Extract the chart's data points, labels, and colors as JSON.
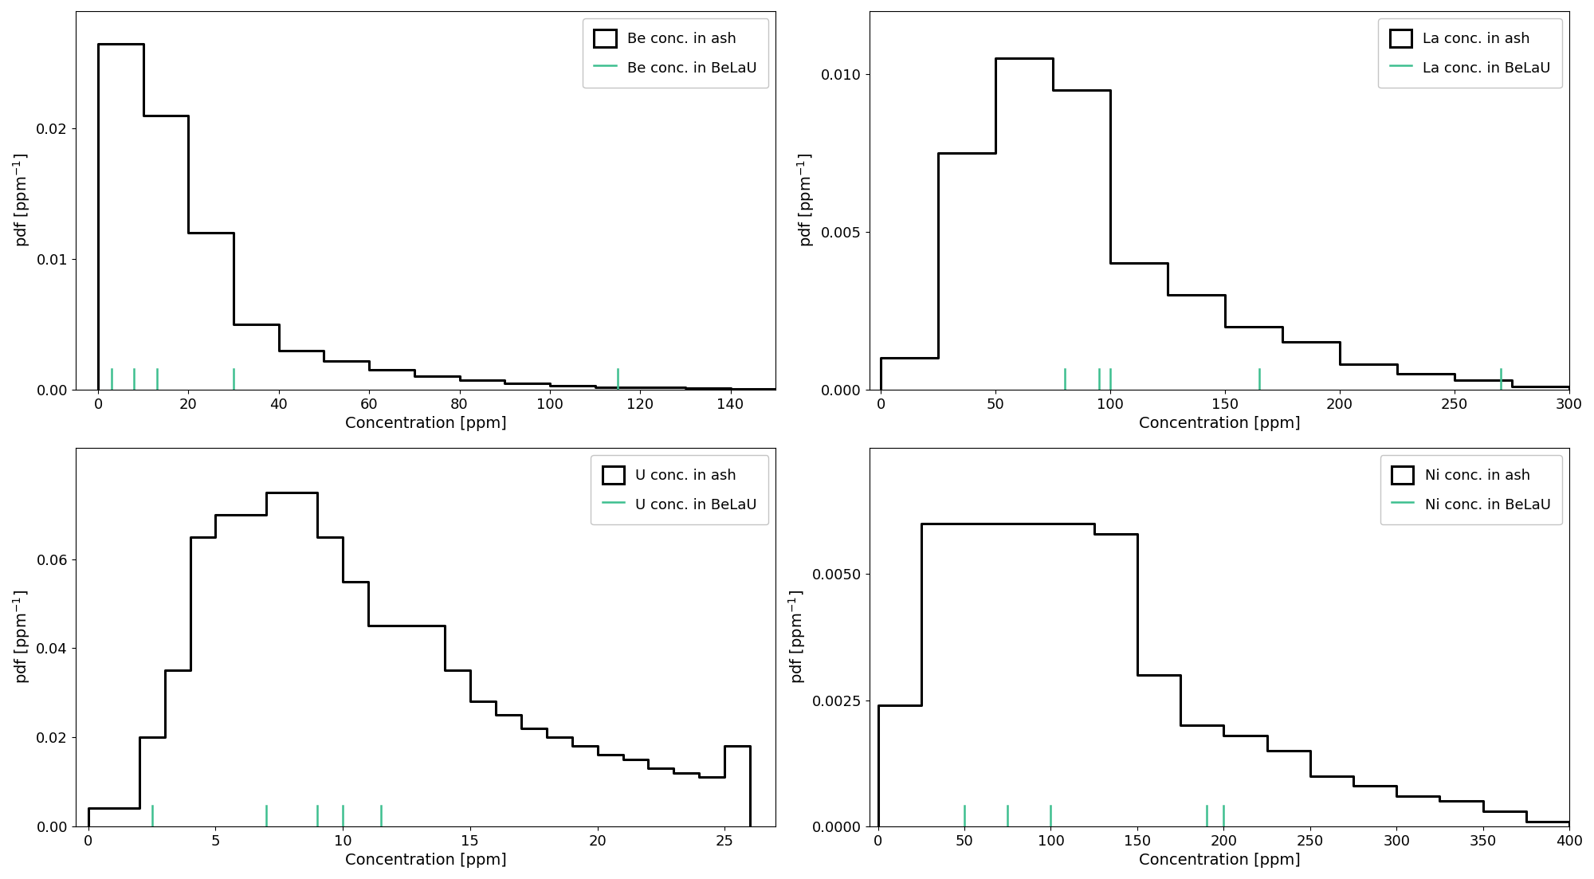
{
  "panels": [
    {
      "element": "Be",
      "ash_label": "Be conc. in ash",
      "belau_label": "Be conc. in BeLaU",
      "xlim": [
        -5,
        150
      ],
      "ylabel": "pdf [ppm$^{-1}$]",
      "xlabel": "Concentration [ppm]",
      "hist_bins": [
        0,
        10,
        20,
        30,
        40,
        50,
        60,
        70,
        80,
        90,
        100,
        110,
        120,
        130,
        140,
        150
      ],
      "hist_density": [
        0.0265,
        0.021,
        0.012,
        0.005,
        0.003,
        0.0022,
        0.0015,
        0.001,
        0.00075,
        0.0005,
        0.0003,
        0.0002,
        0.00015,
        0.0001,
        5e-05
      ],
      "belau_x": [
        3,
        8,
        13,
        30,
        115
      ],
      "yticks": [
        0.0,
        0.01,
        0.02
      ],
      "ymax": 0.029
    },
    {
      "element": "La",
      "ash_label": "La conc. in ash",
      "belau_label": "La conc. in BeLaU",
      "xlim": [
        -5,
        300
      ],
      "ylabel": "pdf [ppm$^{-1}$]",
      "xlabel": "Concentration [ppm]",
      "hist_bins": [
        0,
        25,
        50,
        75,
        100,
        125,
        150,
        175,
        200,
        225,
        250,
        275,
        300
      ],
      "hist_density": [
        0.001,
        0.0075,
        0.0105,
        0.0095,
        0.004,
        0.003,
        0.002,
        0.0015,
        0.0008,
        0.0005,
        0.0003,
        0.0001
      ],
      "belau_x": [
        80,
        95,
        100,
        165,
        270
      ],
      "yticks": [
        0.0,
        0.005,
        0.01
      ],
      "ymax": 0.012
    },
    {
      "element": "U",
      "ash_label": "U conc. in ash",
      "belau_label": "U conc. in BeLaU",
      "xlim": [
        -0.5,
        27
      ],
      "ylabel": "pdf [ppm$^{-1}$]",
      "xlabel": "Concentration [ppm]",
      "hist_bins": [
        0,
        1,
        2,
        3,
        4,
        5,
        6,
        7,
        8,
        9,
        10,
        11,
        12,
        13,
        14,
        15,
        16,
        17,
        18,
        19,
        20,
        21,
        22,
        23,
        24,
        25,
        26
      ],
      "hist_density": [
        0.004,
        0.004,
        0.02,
        0.035,
        0.065,
        0.07,
        0.07,
        0.075,
        0.075,
        0.065,
        0.055,
        0.045,
        0.045,
        0.045,
        0.035,
        0.028,
        0.025,
        0.022,
        0.02,
        0.018,
        0.016,
        0.015,
        0.013,
        0.012,
        0.011,
        0.018
      ],
      "belau_x": [
        2.5,
        7,
        9,
        10,
        11.5
      ],
      "yticks": [
        0.0,
        0.02,
        0.04,
        0.06
      ],
      "ymax": 0.085
    },
    {
      "element": "Ni",
      "ash_label": "Ni conc. in ash",
      "belau_label": "Ni conc. in BeLaU",
      "xlim": [
        -5,
        400
      ],
      "ylabel": "pdf [ppm$^{-1}$]",
      "xlabel": "Concentration [ppm]",
      "hist_bins": [
        0,
        25,
        50,
        75,
        100,
        125,
        150,
        175,
        200,
        225,
        250,
        275,
        300,
        325,
        350,
        375,
        400
      ],
      "hist_density": [
        0.0024,
        0.006,
        0.006,
        0.006,
        0.006,
        0.0058,
        0.003,
        0.002,
        0.0018,
        0.0015,
        0.001,
        0.0008,
        0.0006,
        0.0005,
        0.0003,
        0.0001
      ],
      "belau_x": [
        50,
        75,
        100,
        190,
        200
      ],
      "yticks": [
        0.0,
        0.0025,
        0.005
      ],
      "ymax": 0.0075
    }
  ],
  "hist_color": "#000000",
  "belau_color": "#3dbf8f",
  "linewidth": 2.2,
  "tick_linewidth": 1.8,
  "legend_fontsize": 13,
  "axis_fontsize": 14,
  "tick_fontsize": 13
}
